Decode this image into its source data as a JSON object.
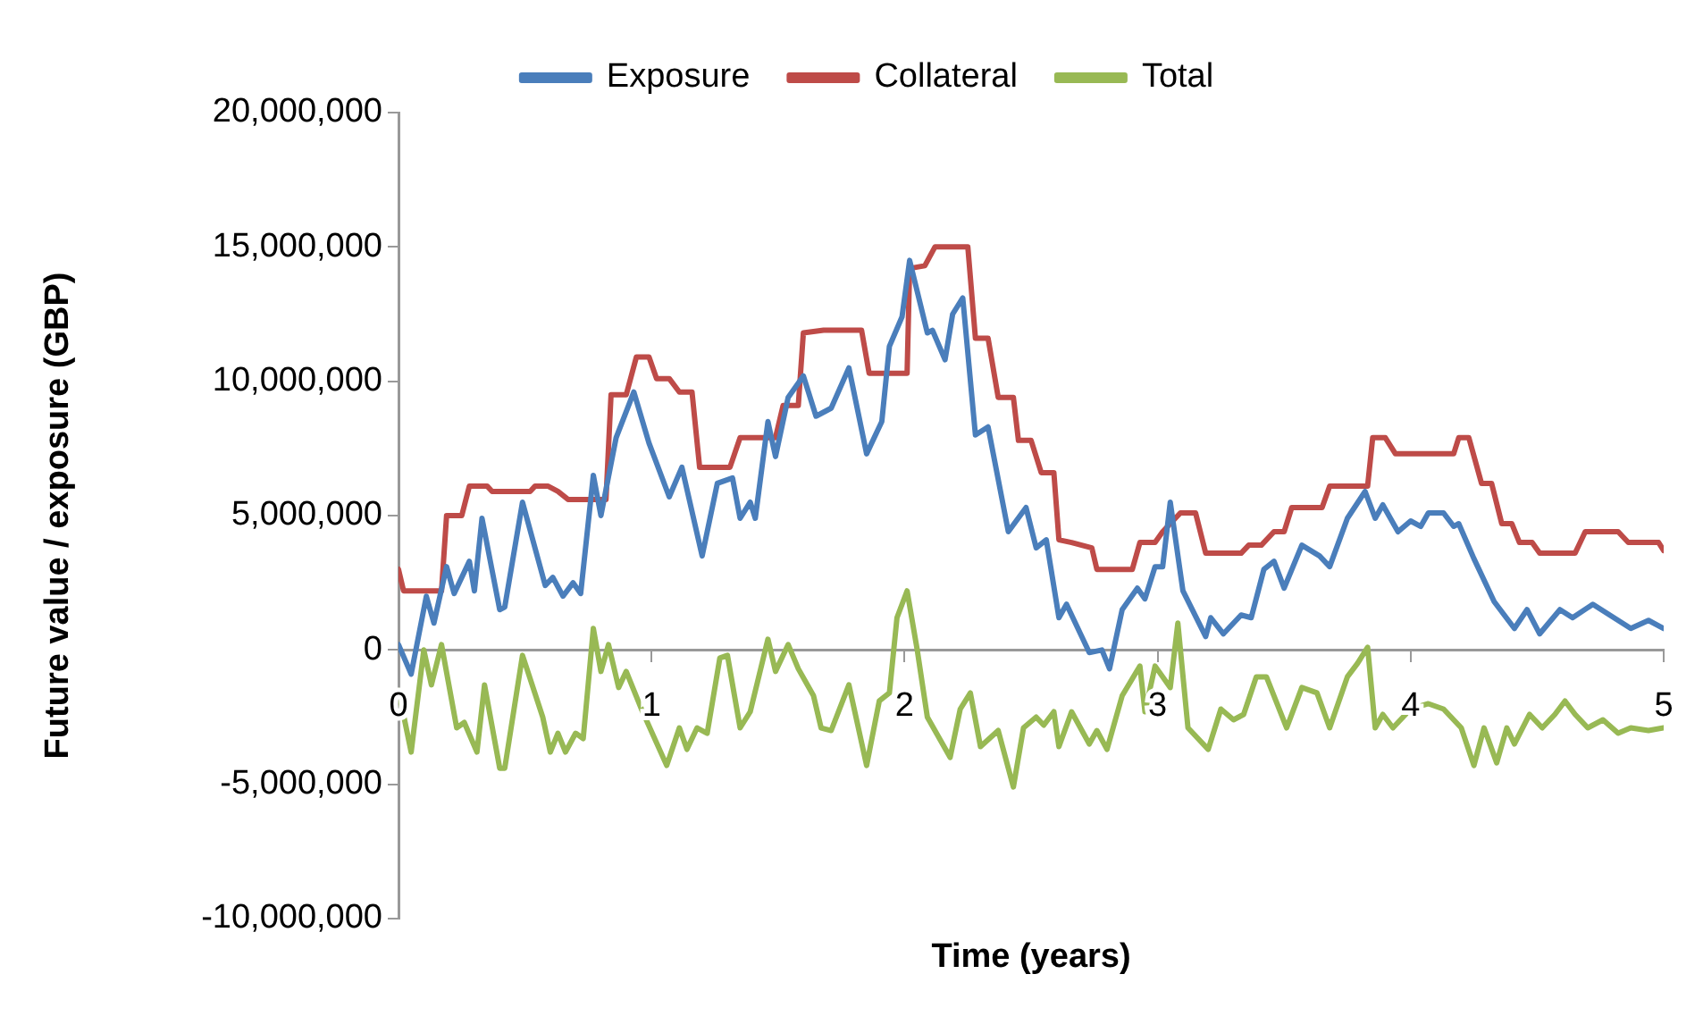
{
  "chart_data": {
    "type": "line",
    "xlabel": "Time (years)",
    "ylabel": "Future value / exposure (GBP)",
    "legend": "top",
    "grid": false,
    "marker": "none",
    "line_style": "solid",
    "xlim": [
      0,
      5
    ],
    "xticks": [
      0,
      1,
      2,
      3,
      4,
      5
    ],
    "ylim": [
      -10000000,
      20000000
    ],
    "yticks": [
      {
        "value": -10000000,
        "label": "-10,000,000"
      },
      {
        "value": -5000000,
        "label": "-5,000,000"
      },
      {
        "value": 0,
        "label": "0"
      },
      {
        "value": 5000000,
        "label": "5,000,000"
      },
      {
        "value": 10000000,
        "label": "10,000,000"
      },
      {
        "value": 15000000,
        "label": "15,000,000"
      },
      {
        "value": 20000000,
        "label": "20,000,000"
      }
    ],
    "series": [
      {
        "name": "Exposure",
        "color": "#4a7ebb",
        "x": [
          0,
          0.05,
          0.11,
          0.14,
          0.19,
          0.22,
          0.28,
          0.3,
          0.33,
          0.4,
          0.42,
          0.49,
          0.58,
          0.61,
          0.65,
          0.69,
          0.72,
          0.77,
          0.8,
          0.86,
          0.93,
          0.99,
          1.07,
          1.12,
          1.2,
          1.26,
          1.32,
          1.35,
          1.39,
          1.41,
          1.46,
          1.49,
          1.54,
          1.6,
          1.65,
          1.71,
          1.78,
          1.85,
          1.91,
          1.94,
          1.99,
          2.02,
          2.09,
          2.11,
          2.16,
          2.19,
          2.23,
          2.28,
          2.33,
          2.41,
          2.48,
          2.52,
          2.56,
          2.61,
          2.64,
          2.73,
          2.78,
          2.81,
          2.86,
          2.92,
          2.95,
          2.99,
          3.02,
          3.05,
          3.1,
          3.19,
          3.21,
          3.26,
          3.33,
          3.37,
          3.42,
          3.46,
          3.5,
          3.57,
          3.64,
          3.68,
          3.75,
          3.82,
          3.86,
          3.89,
          3.95,
          4.0,
          4.04,
          4.07,
          4.13,
          4.17,
          4.19,
          4.25,
          4.33,
          4.41,
          4.46,
          4.51,
          4.59,
          4.64,
          4.72,
          4.87,
          4.94,
          5.0
        ],
        "values": [
          200000,
          -900000,
          2000000,
          1000000,
          3100000,
          2100000,
          3300000,
          2200000,
          4900000,
          1500000,
          1600000,
          5500000,
          2400000,
          2700000,
          2000000,
          2500000,
          2100000,
          6500000,
          5000000,
          7900000,
          9600000,
          7700000,
          5700000,
          6800000,
          3500000,
          6200000,
          6400000,
          4900000,
          5500000,
          4900000,
          8500000,
          7200000,
          9400000,
          10200000,
          8700000,
          9000000,
          10500000,
          7300000,
          8500000,
          11300000,
          12400000,
          14500000,
          11800000,
          11900000,
          10800000,
          12500000,
          13100000,
          8000000,
          8300000,
          4400000,
          5300000,
          3800000,
          4100000,
          1200000,
          1700000,
          -100000,
          0,
          -700000,
          1500000,
          2300000,
          1900000,
          3100000,
          3100000,
          5500000,
          2200000,
          500000,
          1200000,
          600000,
          1300000,
          1200000,
          3000000,
          3300000,
          2300000,
          3900000,
          3500000,
          3100000,
          4900000,
          5900000,
          4900000,
          5400000,
          4400000,
          4800000,
          4600000,
          5100000,
          5100000,
          4600000,
          4700000,
          3400000,
          1800000,
          800000,
          1500000,
          600000,
          1500000,
          1200000,
          1700000,
          800000,
          1100000,
          800000
        ]
      },
      {
        "name": "Collateral",
        "color": "#be4b48",
        "x": [
          0,
          0.02,
          0.17,
          0.19,
          0.25,
          0.28,
          0.35,
          0.37,
          0.52,
          0.54,
          0.59,
          0.63,
          0.67,
          0.82,
          0.84,
          0.9,
          0.94,
          0.99,
          1.02,
          1.07,
          1.11,
          1.16,
          1.19,
          1.31,
          1.35,
          1.49,
          1.52,
          1.58,
          1.6,
          1.68,
          1.83,
          1.86,
          2.01,
          2.02,
          2.08,
          2.12,
          2.25,
          2.28,
          2.33,
          2.37,
          2.43,
          2.45,
          2.5,
          2.54,
          2.59,
          2.61,
          2.66,
          2.74,
          2.76,
          2.9,
          2.93,
          2.99,
          3.02,
          3.09,
          3.15,
          3.19,
          3.33,
          3.36,
          3.41,
          3.46,
          3.5,
          3.53,
          3.65,
          3.68,
          3.83,
          3.85,
          3.9,
          3.94,
          4.17,
          4.19,
          4.23,
          4.28,
          4.32,
          4.36,
          4.4,
          4.43,
          4.48,
          4.51,
          4.65,
          4.69,
          4.82,
          4.86,
          4.98,
          5.0
        ],
        "values": [
          3000000,
          2200000,
          2200000,
          5000000,
          5000000,
          6100000,
          6100000,
          5900000,
          5900000,
          6100000,
          6100000,
          5900000,
          5600000,
          5600000,
          9500000,
          9500000,
          10900000,
          10900000,
          10100000,
          10100000,
          9600000,
          9600000,
          6800000,
          6800000,
          7900000,
          7900000,
          9100000,
          9100000,
          11800000,
          11900000,
          11900000,
          10300000,
          10300000,
          14200000,
          14300000,
          15000000,
          15000000,
          11600000,
          11600000,
          9400000,
          9400000,
          7800000,
          7800000,
          6600000,
          6600000,
          4100000,
          4000000,
          3800000,
          3000000,
          3000000,
          4000000,
          4000000,
          4400000,
          5100000,
          5100000,
          3600000,
          3600000,
          3900000,
          3900000,
          4400000,
          4400000,
          5300000,
          5300000,
          6100000,
          6100000,
          7900000,
          7900000,
          7300000,
          7300000,
          7900000,
          7900000,
          6200000,
          6200000,
          4700000,
          4700000,
          4000000,
          4000000,
          3600000,
          3600000,
          4400000,
          4400000,
          4000000,
          4000000,
          3700000
        ]
      },
      {
        "name": "Total",
        "color": "#98b954",
        "x": [
          0,
          0.05,
          0.1,
          0.13,
          0.17,
          0.23,
          0.26,
          0.31,
          0.34,
          0.4,
          0.42,
          0.49,
          0.57,
          0.6,
          0.63,
          0.66,
          0.7,
          0.73,
          0.77,
          0.8,
          0.83,
          0.87,
          0.9,
          0.96,
          1.06,
          1.11,
          1.14,
          1.18,
          1.22,
          1.27,
          1.3,
          1.35,
          1.39,
          1.46,
          1.49,
          1.54,
          1.58,
          1.64,
          1.67,
          1.71,
          1.78,
          1.85,
          1.9,
          1.94,
          1.97,
          2.01,
          2.05,
          2.09,
          2.18,
          2.22,
          2.26,
          2.3,
          2.37,
          2.43,
          2.47,
          2.52,
          2.55,
          2.59,
          2.61,
          2.66,
          2.73,
          2.76,
          2.8,
          2.86,
          2.93,
          2.95,
          2.99,
          3.05,
          3.08,
          3.12,
          3.2,
          3.25,
          3.3,
          3.34,
          3.39,
          3.43,
          3.51,
          3.57,
          3.63,
          3.68,
          3.75,
          3.79,
          3.83,
          3.86,
          3.89,
          3.93,
          4.0,
          4.07,
          4.13,
          4.2,
          4.25,
          4.29,
          4.34,
          4.38,
          4.41,
          4.47,
          4.52,
          4.57,
          4.61,
          4.65,
          4.7,
          4.76,
          4.82,
          4.87,
          4.94,
          5.0
        ],
        "values": [
          -1500000,
          -3800000,
          0,
          -1300000,
          200000,
          -2900000,
          -2700000,
          -3800000,
          -1300000,
          -4400000,
          -4400000,
          -200000,
          -2500000,
          -3800000,
          -3100000,
          -3800000,
          -3100000,
          -3300000,
          800000,
          -800000,
          200000,
          -1400000,
          -800000,
          -2200000,
          -4300000,
          -2900000,
          -3700000,
          -2900000,
          -3100000,
          -300000,
          -200000,
          -2900000,
          -2300000,
          400000,
          -800000,
          200000,
          -700000,
          -1700000,
          -2900000,
          -3000000,
          -1300000,
          -4300000,
          -1900000,
          -1600000,
          1200000,
          2200000,
          0,
          -2500000,
          -4000000,
          -2200000,
          -1600000,
          -3600000,
          -3000000,
          -5100000,
          -2900000,
          -2500000,
          -2800000,
          -2300000,
          -3600000,
          -2300000,
          -3500000,
          -3000000,
          -3700000,
          -1700000,
          -600000,
          -2300000,
          -600000,
          -1400000,
          1000000,
          -2900000,
          -3700000,
          -2200000,
          -2600000,
          -2400000,
          -1000000,
          -1000000,
          -2900000,
          -1400000,
          -1600000,
          -2900000,
          -1000000,
          -500000,
          100000,
          -2900000,
          -2400000,
          -2900000,
          -2200000,
          -2000000,
          -2200000,
          -2900000,
          -4300000,
          -2900000,
          -4200000,
          -2900000,
          -3500000,
          -2400000,
          -2900000,
          -2400000,
          -1900000,
          -2400000,
          -2900000,
          -2600000,
          -3100000,
          -2900000,
          -3000000,
          -2900000
        ]
      }
    ]
  }
}
